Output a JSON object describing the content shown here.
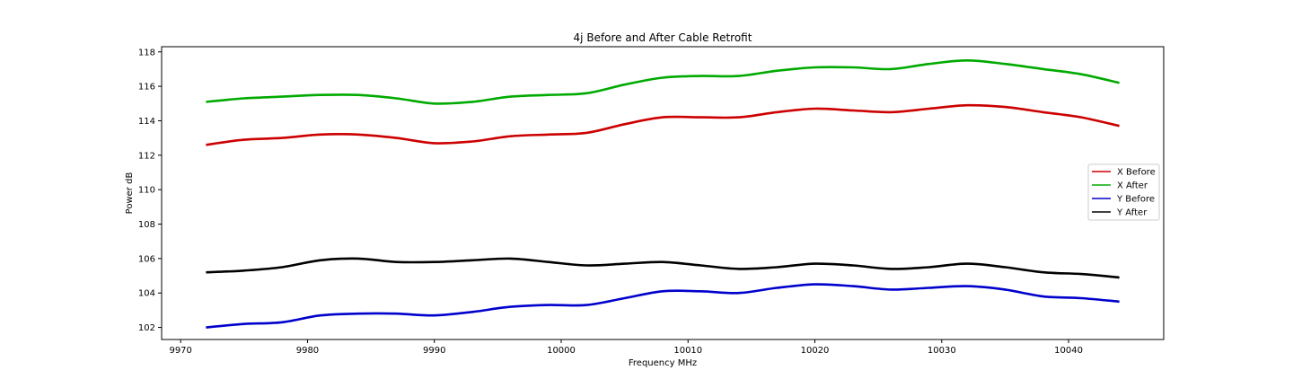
{
  "chart_data": {
    "type": "line",
    "title": "4j Before and After Cable Retrofit",
    "xlabel": "Frequency MHz",
    "ylabel": "Power dB",
    "xlim": [
      9968.5,
      10047.5
    ],
    "ylim": [
      101.3,
      118.3
    ],
    "xticks": [
      9970,
      9980,
      9990,
      10000,
      10010,
      10020,
      10030,
      10040
    ],
    "yticks": [
      102,
      104,
      106,
      108,
      110,
      112,
      114,
      116,
      118
    ],
    "grid": false,
    "legend_position": "center-right",
    "x": [
      9972,
      9975,
      9978,
      9981,
      9984,
      9987,
      9990,
      9993,
      9996,
      9999,
      10002,
      10005,
      10008,
      10011,
      10014,
      10017,
      10020,
      10023,
      10026,
      10029,
      10032,
      10035,
      10038,
      10041,
      10044
    ],
    "series": [
      {
        "name": "X Before",
        "color": "#cc0000",
        "values": [
          112.6,
          112.9,
          113.0,
          113.2,
          113.2,
          113.0,
          112.7,
          112.8,
          113.1,
          113.2,
          113.3,
          113.8,
          114.2,
          114.2,
          114.2,
          114.5,
          114.7,
          114.6,
          114.5,
          114.7,
          114.9,
          114.8,
          114.5,
          114.2,
          113.7
        ]
      },
      {
        "name": "X After",
        "color": "#00aa00",
        "values": [
          115.1,
          115.3,
          115.4,
          115.5,
          115.5,
          115.3,
          115.0,
          115.1,
          115.4,
          115.5,
          115.6,
          116.1,
          116.5,
          116.6,
          116.6,
          116.9,
          117.1,
          117.1,
          117.0,
          117.3,
          117.5,
          117.3,
          117.0,
          116.7,
          116.2
        ]
      },
      {
        "name": "Y Before",
        "color": "#0000cc",
        "values": [
          102.0,
          102.2,
          102.3,
          102.7,
          102.8,
          102.8,
          102.7,
          102.9,
          103.2,
          103.3,
          103.3,
          103.7,
          104.1,
          104.1,
          104.0,
          104.3,
          104.5,
          104.4,
          104.2,
          104.3,
          104.4,
          104.2,
          103.8,
          103.7,
          103.5
        ]
      },
      {
        "name": "Y After",
        "color": "#000000",
        "values": [
          105.2,
          105.3,
          105.5,
          105.9,
          106.0,
          105.8,
          105.8,
          105.9,
          106.0,
          105.8,
          105.6,
          105.7,
          105.8,
          105.6,
          105.4,
          105.5,
          105.7,
          105.6,
          105.4,
          105.5,
          105.7,
          105.5,
          105.2,
          105.1,
          104.9
        ]
      }
    ]
  }
}
